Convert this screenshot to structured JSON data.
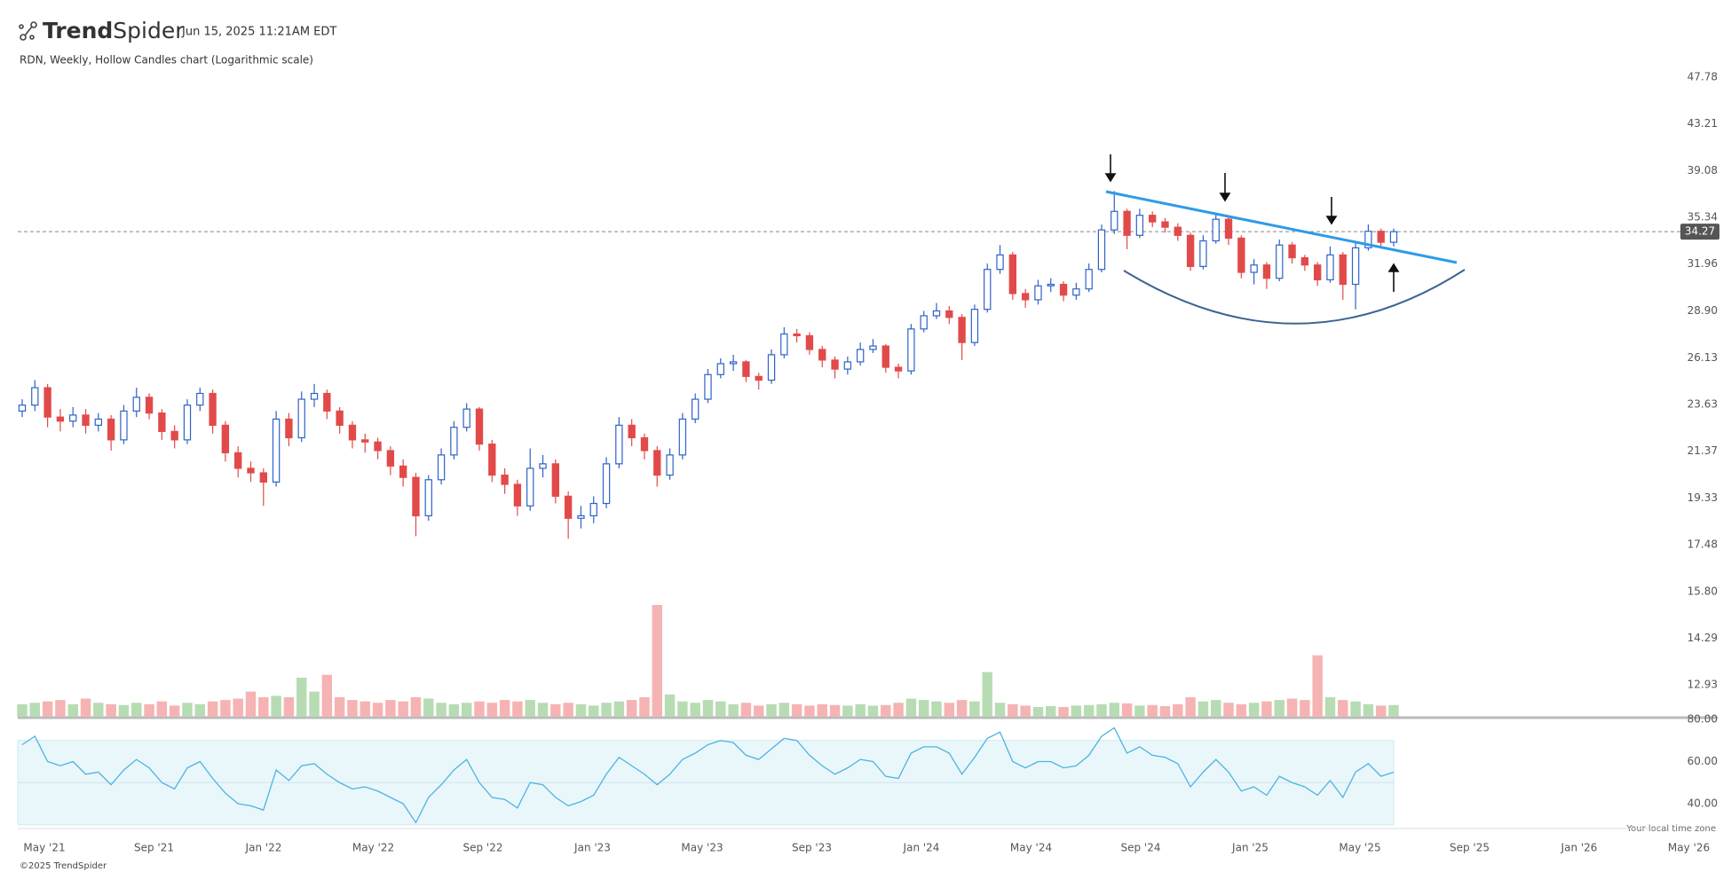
{
  "logo": {
    "bold": "Trend",
    "light": "Spider"
  },
  "timestamp": "Jun 15, 2025 11:21AM EDT",
  "footer": "©2025 TrendSpider",
  "timezone_note": "Your local time zone",
  "chart_data": {
    "type": "candlestick",
    "title": "RDN, Weekly, Hollow Candles chart (Logarithmic scale)",
    "log_scale": true,
    "ylim": [
      12.93,
      47.78
    ],
    "yticks": [
      47.78,
      43.21,
      39.08,
      35.34,
      31.96,
      {
        "value": 28.9,
        "label": "28.90"
      },
      26.13,
      23.63,
      21.37,
      19.33,
      17.48,
      {
        "value": 15.8,
        "label": "15.80"
      },
      14.29,
      12.93
    ],
    "xticks": [
      "May '21",
      "Sep '21",
      "Jan '22",
      "May '22",
      "Sep '22",
      "Jan '23",
      "May '23",
      "Sep '23",
      "Jan '24",
      "May '24",
      "Sep '24",
      "Jan '25",
      "May '25",
      "Sep '25",
      "Jan '26",
      "May '26"
    ],
    "up_color": "#2f62c9",
    "down_color": "#e24a4a",
    "volume_up_color": "#b7dcb4",
    "volume_down_color": "#f6b3b3",
    "open": [
      23.3,
      23.6,
      24.5,
      23.0,
      22.8,
      23.1,
      22.6,
      22.9,
      21.9,
      23.3,
      24.0,
      23.2,
      22.3,
      21.9,
      23.6,
      24.2,
      22.6,
      21.3,
      20.6,
      20.4,
      20.0,
      22.9,
      22.0,
      23.9,
      24.2,
      23.3,
      22.6,
      21.9,
      21.8,
      21.4,
      20.7,
      20.2,
      18.6,
      20.1,
      21.2,
      22.5,
      23.4,
      21.7,
      20.3,
      19.9,
      19.0,
      20.6,
      20.8,
      19.4,
      18.5,
      18.6,
      19.1,
      20.8,
      22.6,
      22.0,
      21.4,
      20.3,
      21.2,
      22.9,
      23.9,
      25.2,
      25.8,
      25.9,
      25.1,
      24.9,
      26.3,
      27.5,
      27.4,
      26.6,
      26.0,
      25.5,
      25.9,
      26.6,
      26.8,
      25.6,
      25.4,
      27.8,
      28.6,
      28.9,
      28.5,
      27.0,
      29.0,
      31.6,
      32.6,
      30.0,
      29.6,
      30.5,
      30.6,
      29.9,
      30.3,
      31.6,
      34.4,
      35.8,
      34.0,
      35.5,
      35.0,
      34.6,
      34.0,
      31.8,
      33.6,
      35.2,
      33.8,
      31.4,
      31.9,
      31.0,
      33.3,
      32.4,
      31.9,
      30.9,
      32.6,
      30.6,
      33.1,
      34.3,
      33.5
    ],
    "high": [
      23.9,
      24.9,
      24.7,
      23.4,
      23.5,
      23.4,
      23.2,
      23.1,
      23.6,
      24.5,
      24.2,
      23.4,
      22.6,
      23.9,
      24.5,
      24.4,
      22.8,
      21.6,
      20.9,
      20.6,
      23.3,
      23.2,
      24.3,
      24.7,
      24.4,
      23.5,
      22.8,
      22.2,
      22.0,
      21.6,
      21.0,
      20.4,
      20.3,
      21.5,
      22.8,
      23.7,
      23.5,
      21.9,
      20.6,
      20.1,
      21.5,
      21.2,
      21.0,
      19.6,
      19.0,
      19.4,
      21.1,
      23.0,
      22.9,
      22.2,
      21.6,
      21.5,
      23.2,
      24.2,
      25.5,
      26.1,
      26.3,
      26.0,
      25.3,
      26.6,
      27.9,
      27.8,
      27.6,
      26.8,
      26.2,
      26.2,
      27.0,
      27.2,
      26.9,
      25.8,
      28.1,
      28.9,
      29.4,
      29.2,
      28.7,
      29.3,
      32.0,
      33.3,
      32.8,
      30.3,
      30.9,
      31.0,
      30.8,
      30.7,
      32.0,
      34.8,
      37.4,
      36.0,
      36.0,
      35.8,
      35.3,
      34.9,
      34.2,
      34.0,
      35.7,
      35.4,
      34.0,
      32.3,
      32.1,
      33.7,
      33.5,
      32.6,
      32.1,
      33.2,
      32.8,
      33.5,
      34.8,
      34.5,
      34.5
    ],
    "low": [
      23.0,
      23.3,
      22.5,
      22.3,
      22.5,
      22.2,
      22.3,
      21.4,
      21.7,
      23.0,
      22.9,
      21.9,
      21.5,
      21.7,
      23.3,
      22.2,
      20.9,
      20.2,
      20.0,
      19.0,
      19.8,
      21.6,
      21.8,
      23.5,
      22.9,
      22.2,
      21.5,
      21.3,
      21.0,
      20.3,
      19.8,
      17.8,
      18.4,
      19.9,
      21.0,
      22.3,
      21.4,
      20.0,
      19.5,
      18.6,
      18.8,
      20.2,
      19.1,
      17.7,
      18.1,
      18.3,
      18.9,
      20.6,
      21.6,
      21.0,
      19.8,
      20.1,
      21.0,
      22.7,
      23.7,
      25.0,
      25.4,
      24.8,
      24.4,
      24.7,
      26.1,
      27.0,
      26.3,
      25.6,
      25.0,
      25.2,
      25.7,
      26.4,
      25.3,
      25.0,
      25.2,
      27.6,
      28.4,
      28.1,
      26.0,
      26.8,
      28.8,
      31.3,
      29.6,
      29.1,
      29.3,
      30.1,
      29.5,
      29.6,
      30.1,
      31.4,
      34.1,
      33.0,
      33.8,
      34.6,
      34.2,
      33.6,
      31.5,
      31.6,
      33.4,
      33.3,
      31.0,
      30.6,
      30.3,
      30.8,
      32.0,
      31.5,
      30.5,
      30.7,
      29.6,
      29.0,
      32.9,
      33.1,
      33.2
    ],
    "close": [
      23.6,
      24.5,
      23.0,
      22.8,
      23.1,
      22.6,
      22.9,
      21.9,
      23.3,
      24.0,
      23.2,
      22.3,
      21.9,
      23.6,
      24.2,
      22.6,
      21.3,
      20.6,
      20.4,
      20.0,
      22.9,
      22.0,
      23.9,
      24.2,
      23.3,
      22.6,
      21.9,
      21.8,
      21.4,
      20.7,
      20.2,
      18.6,
      20.1,
      21.2,
      22.5,
      23.4,
      21.7,
      20.3,
      19.9,
      19.0,
      20.6,
      20.8,
      19.4,
      18.5,
      18.6,
      19.1,
      20.8,
      22.6,
      22.0,
      21.4,
      20.3,
      21.2,
      22.9,
      23.9,
      25.2,
      25.8,
      25.9,
      25.1,
      24.9,
      26.3,
      27.5,
      27.4,
      26.6,
      26.0,
      25.5,
      25.9,
      26.6,
      26.8,
      25.6,
      25.4,
      27.8,
      28.6,
      28.9,
      28.5,
      27.0,
      29.0,
      31.6,
      32.6,
      30.0,
      29.6,
      30.5,
      30.6,
      29.9,
      30.3,
      31.6,
      34.4,
      35.8,
      34.0,
      35.5,
      35.0,
      34.6,
      34.0,
      31.8,
      33.6,
      35.2,
      33.8,
      31.4,
      31.9,
      31.0,
      33.3,
      32.4,
      31.9,
      30.9,
      32.6,
      30.6,
      33.1,
      34.3,
      33.5,
      34.27
    ],
    "volume": [
      0.45,
      0.5,
      0.55,
      0.6,
      0.45,
      0.65,
      0.5,
      0.45,
      0.42,
      0.5,
      0.45,
      0.55,
      0.4,
      0.5,
      0.45,
      0.55,
      0.6,
      0.65,
      0.9,
      0.7,
      0.75,
      0.7,
      1.4,
      0.9,
      1.5,
      0.7,
      0.6,
      0.55,
      0.5,
      0.6,
      0.55,
      0.7,
      0.65,
      0.5,
      0.45,
      0.5,
      0.55,
      0.5,
      0.6,
      0.55,
      0.6,
      0.5,
      0.45,
      0.5,
      0.45,
      0.4,
      0.5,
      0.55,
      0.6,
      0.7,
      4.0,
      0.8,
      0.55,
      0.5,
      0.6,
      0.55,
      0.45,
      0.5,
      0.4,
      0.45,
      0.5,
      0.45,
      0.4,
      0.45,
      0.42,
      0.4,
      0.45,
      0.4,
      0.42,
      0.5,
      0.65,
      0.6,
      0.55,
      0.5,
      0.6,
      0.55,
      1.6,
      0.5,
      0.45,
      0.4,
      0.35,
      0.38,
      0.35,
      0.4,
      0.42,
      0.45,
      0.5,
      0.48,
      0.4,
      0.42,
      0.38,
      0.45,
      0.7,
      0.55,
      0.6,
      0.5,
      0.45,
      0.5,
      0.55,
      0.6,
      0.65,
      0.6,
      2.2,
      0.7,
      0.6,
      0.55,
      0.45,
      0.4,
      0.42
    ],
    "rsi": {
      "color": "#4fb3e0",
      "band": [
        30,
        70
      ],
      "band_color": "#e9f7fb",
      "ylim": [
        28,
        80
      ],
      "yticks": [
        {
          "value": 80,
          "label": "80.00"
        },
        {
          "value": 60,
          "label": "60.00"
        },
        {
          "value": 40,
          "label": "40.00"
        }
      ],
      "values": [
        68,
        72,
        60,
        58,
        60,
        54,
        55,
        49,
        56,
        61,
        57,
        50,
        47,
        57,
        60,
        52,
        45,
        40,
        39,
        37,
        56,
        51,
        58,
        59,
        54,
        50,
        47,
        48,
        46,
        43,
        40,
        31,
        43,
        49,
        56,
        61,
        50,
        43,
        42,
        38,
        50,
        49,
        43,
        39,
        41,
        44,
        54,
        62,
        58,
        54,
        49,
        54,
        61,
        64,
        68,
        70,
        69,
        63,
        61,
        66,
        71,
        70,
        63,
        58,
        54,
        57,
        61,
        60,
        53,
        52,
        64,
        67,
        67,
        64,
        54,
        62,
        71,
        74,
        60,
        57,
        60,
        60,
        57,
        58,
        63,
        72,
        76,
        64,
        67,
        63,
        62,
        59,
        48,
        55,
        61,
        55,
        46,
        48,
        44,
        53,
        50,
        48,
        44,
        51,
        43,
        55,
        59,
        53,
        55
      ]
    }
  }
}
